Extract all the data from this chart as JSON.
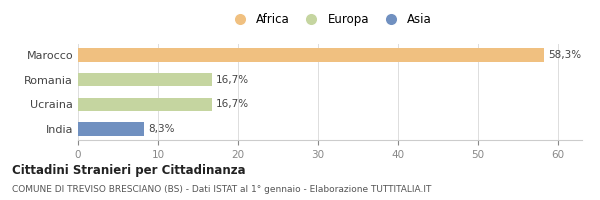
{
  "categories": [
    "Marocco",
    "Romania",
    "Ucraina",
    "India"
  ],
  "values": [
    58.3,
    16.7,
    16.7,
    8.3
  ],
  "labels": [
    "58,3%",
    "16,7%",
    "16,7%",
    "8,3%"
  ],
  "colors": [
    "#f0c080",
    "#c5d5a0",
    "#c5d5a0",
    "#7090c0"
  ],
  "legend_items": [
    {
      "label": "Africa",
      "color": "#f0c080"
    },
    {
      "label": "Europa",
      "color": "#c5d5a0"
    },
    {
      "label": "Asia",
      "color": "#7090c0"
    }
  ],
  "xlim": [
    0,
    63
  ],
  "xticks": [
    0,
    10,
    20,
    30,
    40,
    50,
    60
  ],
  "title": "Cittadini Stranieri per Cittadinanza",
  "subtitle": "COMUNE DI TREVISO BRESCIANO (BS) - Dati ISTAT al 1° gennaio - Elaborazione TUTTITALIA.IT",
  "background_color": "#ffffff",
  "bar_height": 0.55
}
